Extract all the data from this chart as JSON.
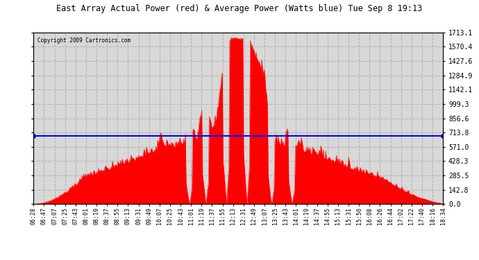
{
  "title": "East Array Actual Power (red) & Average Power (Watts blue) Tue Sep 8 19:13",
  "copyright": "Copyright 2009 Cartronics.com",
  "avg_power": 677.67,
  "y_max": 1713.1,
  "y_ticks": [
    0.0,
    142.8,
    285.5,
    428.3,
    571.0,
    713.8,
    856.6,
    999.3,
    1142.1,
    1284.9,
    1427.6,
    1570.4,
    1713.1
  ],
  "fill_color": "#ff0000",
  "avg_line_color": "#0000ff",
  "plot_bg": "#d8d8d8",
  "grid_color": "#b0b0b0",
  "x_times": [
    "06:28",
    "06:47",
    "07:07",
    "07:25",
    "07:43",
    "08:01",
    "08:19",
    "08:37",
    "08:55",
    "09:13",
    "09:31",
    "09:49",
    "10:07",
    "10:25",
    "10:43",
    "11:01",
    "11:19",
    "11:37",
    "11:55",
    "12:13",
    "12:31",
    "12:49",
    "13:07",
    "13:25",
    "13:43",
    "14:01",
    "14:19",
    "14:37",
    "14:55",
    "15:13",
    "15:31",
    "15:50",
    "16:08",
    "16:26",
    "16:44",
    "17:02",
    "17:22",
    "17:40",
    "18:16",
    "18:34"
  ],
  "figsize": [
    6.9,
    3.75
  ],
  "dpi": 100
}
